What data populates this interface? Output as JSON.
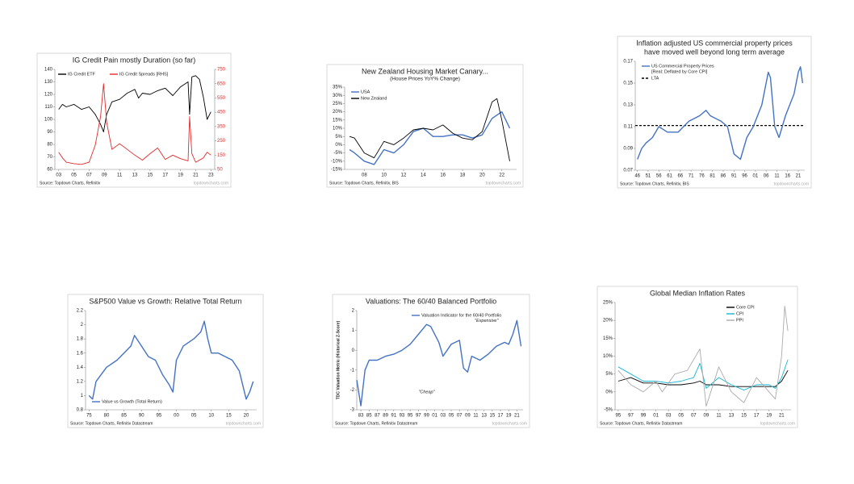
{
  "chart_data": [
    {
      "type": "line",
      "title": "IG Credit Pain mostly Duration (so far)",
      "xlim": [
        2002.5,
        2023.5
      ],
      "xticks": [
        {
          "value": 2003,
          "label": "03"
        },
        {
          "value": 2005,
          "label": "05"
        },
        {
          "value": 2007,
          "label": "07"
        },
        {
          "value": 2009,
          "label": "09"
        },
        {
          "value": 2011,
          "label": "11"
        },
        {
          "value": 2013,
          "label": "13"
        },
        {
          "value": 2015,
          "label": "15"
        },
        {
          "value": 2017,
          "label": "17"
        },
        {
          "value": 2019,
          "label": "19"
        },
        {
          "value": 2021,
          "label": "21"
        },
        {
          "value": 2023,
          "label": "23"
        }
      ],
      "ylim": [
        60,
        140
      ],
      "yticks": [
        60,
        70,
        80,
        90,
        100,
        110,
        120,
        130,
        140
      ],
      "y2lim": [
        50,
        750
      ],
      "y2ticks": [
        50,
        150,
        250,
        350,
        450,
        550,
        650,
        750
      ],
      "legend": "upper left",
      "series": [
        {
          "name": "IG Credit ETF",
          "color": "#000000",
          "x": [
            2003,
            2003.5,
            2004,
            2005,
            2006,
            2007,
            2007.8,
            2008.5,
            2008.9,
            2009.3,
            2010,
            2011,
            2012,
            2013,
            2013.5,
            2014,
            2015,
            2016,
            2017,
            2018,
            2019,
            2020,
            2020.2,
            2020.5,
            2021,
            2021.5,
            2022,
            2022.5,
            2023
          ],
          "values": [
            108,
            112,
            110,
            112,
            108,
            110,
            104,
            96,
            90,
            104,
            114,
            116,
            121,
            124,
            117,
            121,
            120,
            123,
            125,
            119,
            126,
            130,
            104,
            134,
            135,
            132,
            118,
            100,
            106
          ]
        },
        {
          "name": "IG Credit Spreads [RHS]",
          "color": "#e32b2b",
          "axis": "y2",
          "x": [
            2003,
            2003.5,
            2004,
            2005,
            2006,
            2007,
            2007.8,
            2008.5,
            2008.9,
            2009.3,
            2010,
            2011,
            2012,
            2013,
            2014,
            2015,
            2016,
            2017,
            2018,
            2019,
            2020,
            2020.2,
            2020.5,
            2021,
            2022,
            2022.5,
            2023
          ],
          "values": [
            170,
            130,
            100,
            90,
            85,
            100,
            220,
            420,
            650,
            380,
            190,
            230,
            190,
            150,
            115,
            160,
            200,
            120,
            150,
            125,
            110,
            420,
            160,
            100,
            130,
            170,
            150
          ]
        }
      ],
      "source": "Source: Topdown Charts, Refinitiv",
      "watermark": "topdowncharts.com"
    },
    {
      "type": "line",
      "title": "New Zealand Housing Market Canary...",
      "subtitle": "(House Prices YoY% Change)",
      "xlim": [
        2006,
        2023.5
      ],
      "xticks": [
        {
          "value": 2008,
          "label": "08"
        },
        {
          "value": 2010,
          "label": "10"
        },
        {
          "value": 2012,
          "label": "12"
        },
        {
          "value": 2014,
          "label": "14"
        },
        {
          "value": 2016,
          "label": "16"
        },
        {
          "value": 2018,
          "label": "18"
        },
        {
          "value": 2020,
          "label": "20"
        },
        {
          "value": 2022,
          "label": "22"
        }
      ],
      "ylim": [
        -15,
        35
      ],
      "yticks": [
        {
          "value": -15,
          "label": "-15%"
        },
        {
          "value": -10,
          "label": "-10%"
        },
        {
          "value": -5,
          "label": "-5%"
        },
        {
          "value": 0,
          "label": "0%"
        },
        {
          "value": 5,
          "label": "5%"
        },
        {
          "value": 10,
          "label": "10%"
        },
        {
          "value": 15,
          "label": "15%"
        },
        {
          "value": 20,
          "label": "20%"
        },
        {
          "value": 25,
          "label": "25%"
        },
        {
          "value": 30,
          "label": "30%"
        },
        {
          "value": 35,
          "label": "35%"
        }
      ],
      "legend": "upper left",
      "series": [
        {
          "name": "USA",
          "color": "#4472c4",
          "x": [
            2006.5,
            2007,
            2008,
            2009,
            2010,
            2011,
            2012,
            2013,
            2014,
            2015,
            2016,
            2017,
            2018,
            2019,
            2020,
            2021,
            2022,
            2022.8
          ],
          "values": [
            -3,
            -5,
            -10,
            -12,
            -3,
            -5,
            0,
            8,
            10,
            5,
            5,
            6,
            6,
            4,
            6,
            16,
            20,
            10
          ]
        },
        {
          "name": "New Zealand",
          "color": "#000000",
          "x": [
            2006.5,
            2007,
            2008,
            2009,
            2010,
            2011,
            2012,
            2013,
            2014,
            2015,
            2016,
            2017,
            2018,
            2019,
            2020,
            2021,
            2021.5,
            2022,
            2022.8
          ],
          "values": [
            5,
            4,
            -5,
            -8,
            2,
            0,
            4,
            9,
            10,
            9,
            12,
            7,
            4,
            3,
            8,
            26,
            28,
            15,
            -10
          ]
        }
      ],
      "source": "Source: Topdown Charts, Refinitiv, BIS",
      "watermark": "topdowncharts.com"
    },
    {
      "type": "line",
      "title": [
        "Inflation adjusted US commercial property prices",
        "have moved well beyond long term average"
      ],
      "xlim": [
        1945,
        2024
      ],
      "xticks": [
        {
          "value": 1946,
          "label": "46"
        },
        {
          "value": 1951,
          "label": "51"
        },
        {
          "value": 1956,
          "label": "56"
        },
        {
          "value": 1961,
          "label": "61"
        },
        {
          "value": 1966,
          "label": "66"
        },
        {
          "value": 1971,
          "label": "71"
        },
        {
          "value": 1976,
          "label": "76"
        },
        {
          "value": 1981,
          "label": "81"
        },
        {
          "value": 1986,
          "label": "86"
        },
        {
          "value": 1991,
          "label": "91"
        },
        {
          "value": 1996,
          "label": "96"
        },
        {
          "value": 2001,
          "label": "01"
        },
        {
          "value": 2006,
          "label": "06"
        },
        {
          "value": 2011,
          "label": "11"
        },
        {
          "value": 2016,
          "label": "16"
        },
        {
          "value": 2021,
          "label": "21"
        }
      ],
      "ylim": [
        0.07,
        0.17
      ],
      "yticks": [
        0.07,
        0.09,
        0.11,
        0.13,
        0.15,
        0.17
      ],
      "legend": "upper left",
      "series": [
        {
          "name": "US Commercial Property Prices",
          "note": "[Real: Deflated by Core CPI]",
          "color": "#4472c4",
          "x": [
            1946,
            1948,
            1950,
            1953,
            1956,
            1960,
            1965,
            1970,
            1975,
            1978,
            1980,
            1985,
            1988,
            1991,
            1994,
            1997,
            2000,
            2004,
            2007,
            2008,
            2010,
            2012,
            2015,
            2019,
            2021,
            2022,
            2023
          ],
          "values": [
            0.08,
            0.09,
            0.095,
            0.1,
            0.11,
            0.105,
            0.105,
            0.115,
            0.12,
            0.125,
            0.12,
            0.115,
            0.11,
            0.085,
            0.08,
            0.1,
            0.11,
            0.13,
            0.16,
            0.155,
            0.11,
            0.1,
            0.12,
            0.14,
            0.16,
            0.165,
            0.15
          ]
        }
      ],
      "reference_line": {
        "name": "LTA",
        "value": 0.111,
        "color": "#000000"
      },
      "source": "Source: Topdown Charts, Refinitiv, BIS",
      "watermark": "topdowncharts.com"
    },
    {
      "type": "line",
      "title": "S&P500 Value vs Growth: Relative Total Return",
      "xlim": [
        1974,
        2023
      ],
      "xticks": [
        {
          "value": 1975,
          "label": "75"
        },
        {
          "value": 1980,
          "label": "80"
        },
        {
          "value": 1985,
          "label": "85"
        },
        {
          "value": 1990,
          "label": "90"
        },
        {
          "value": 1995,
          "label": "95"
        },
        {
          "value": 2000,
          "label": "00"
        },
        {
          "value": 2005,
          "label": "05"
        },
        {
          "value": 2010,
          "label": "10"
        },
        {
          "value": 2015,
          "label": "15"
        },
        {
          "value": 2020,
          "label": "20"
        }
      ],
      "ylim": [
        0.8,
        2.2
      ],
      "yticks": [
        0.8,
        1,
        1.2,
        1.4,
        1.6,
        1.8,
        2,
        2.2
      ],
      "legend": "lower left",
      "series": [
        {
          "name": "Value vs Growth (Total Return)",
          "color": "#4472c4",
          "x": [
            1975,
            1976,
            1977,
            1980,
            1983,
            1985,
            1987,
            1988,
            1990,
            1992,
            1994,
            1996,
            1998,
            1999,
            2000,
            2002,
            2005,
            2007,
            2008,
            2009,
            2010,
            2012,
            2014,
            2016,
            2018,
            2020,
            2021,
            2022
          ],
          "values": [
            1.0,
            0.95,
            1.2,
            1.4,
            1.5,
            1.6,
            1.7,
            1.85,
            1.7,
            1.55,
            1.5,
            1.3,
            1.15,
            1.05,
            1.5,
            1.7,
            1.8,
            1.9,
            2.05,
            1.8,
            1.6,
            1.6,
            1.55,
            1.5,
            1.35,
            0.95,
            1.05,
            1.2
          ]
        }
      ],
      "source": "Source: Topdown Charts, Refinitiv Datastream",
      "watermark": "topdowncharts.com"
    },
    {
      "type": "line",
      "title": "Valuations: The 60/40 Balanced Portfolio",
      "y_label": "TDC Valuation Metric (Historical Z-Score)",
      "xlim": [
        1982,
        2022.5
      ],
      "xticks": [
        {
          "value": 1983,
          "label": "83"
        },
        {
          "value": 1985,
          "label": "85"
        },
        {
          "value": 1987,
          "label": "87"
        },
        {
          "value": 1989,
          "label": "89"
        },
        {
          "value": 1991,
          "label": "91"
        },
        {
          "value": 1993,
          "label": "93"
        },
        {
          "value": 1995,
          "label": "95"
        },
        {
          "value": 1997,
          "label": "97"
        },
        {
          "value": 1999,
          "label": "99"
        },
        {
          "value": 2001,
          "label": "01"
        },
        {
          "value": 2003,
          "label": "03"
        },
        {
          "value": 2005,
          "label": "05"
        },
        {
          "value": 2007,
          "label": "07"
        },
        {
          "value": 2009,
          "label": "09"
        },
        {
          "value": 2011,
          "label": "11"
        },
        {
          "value": 2013,
          "label": "13"
        },
        {
          "value": 2015,
          "label": "15"
        },
        {
          "value": 2017,
          "label": "17"
        },
        {
          "value": 2019,
          "label": "19"
        },
        {
          "value": 2021,
          "label": "21"
        }
      ],
      "ylim": [
        -3,
        2
      ],
      "yticks": [
        -3,
        -2,
        -1,
        0,
        1,
        2
      ],
      "legend": "upper center",
      "annotations": [
        "\"Expensive\"",
        "\"Cheap\""
      ],
      "series": [
        {
          "name": "Valuation Indicator for the 60/40 Portfolio",
          "color": "#4472c4",
          "x": [
            1982,
            1983,
            1984,
            1985,
            1987,
            1989,
            1991,
            1993,
            1995,
            1997,
            1999,
            2000,
            2002,
            2003,
            2005,
            2007,
            2008,
            2009,
            2010,
            2012,
            2014,
            2016,
            2018,
            2019,
            2020,
            2021,
            2022
          ],
          "values": [
            -1.5,
            -2.8,
            -1.0,
            -0.5,
            -0.5,
            -0.3,
            -0.2,
            0,
            0.3,
            0.8,
            1.3,
            1.2,
            0.4,
            -0.3,
            0.3,
            0.5,
            -0.9,
            -1.1,
            -0.3,
            -0.5,
            -0.2,
            0.2,
            0.4,
            0.3,
            0.8,
            1.5,
            0.2
          ]
        }
      ],
      "source": "Source: Topdown Charts, Refinitiv Datastream",
      "watermark": "topdowncharts.com"
    },
    {
      "type": "line",
      "title": "Global Median Inflation Rates",
      "xlim": [
        1994.5,
        2022.5
      ],
      "xticks": [
        {
          "value": 1995,
          "label": "95"
        },
        {
          "value": 1997,
          "label": "97"
        },
        {
          "value": 1999,
          "label": "99"
        },
        {
          "value": 2001,
          "label": "01"
        },
        {
          "value": 2003,
          "label": "03"
        },
        {
          "value": 2005,
          "label": "05"
        },
        {
          "value": 2007,
          "label": "07"
        },
        {
          "value": 2009,
          "label": "09"
        },
        {
          "value": 2011,
          "label": "11"
        },
        {
          "value": 2013,
          "label": "13"
        },
        {
          "value": 2015,
          "label": "15"
        },
        {
          "value": 2017,
          "label": "17"
        },
        {
          "value": 2019,
          "label": "19"
        },
        {
          "value": 2021,
          "label": "21"
        }
      ],
      "ylim": [
        -5,
        25
      ],
      "yticks": [
        {
          "value": -5,
          "label": "-5%"
        },
        {
          "value": 0,
          "label": "0%"
        },
        {
          "value": 5,
          "label": "5%"
        },
        {
          "value": 10,
          "label": "10%"
        },
        {
          "value": 15,
          "label": "15%"
        },
        {
          "value": 20,
          "label": "20%"
        },
        {
          "value": 25,
          "label": "25%"
        }
      ],
      "legend": "upper right",
      "series": [
        {
          "name": "Core CPI",
          "color": "#000000",
          "x": [
            1995,
            1997,
            1999,
            2001,
            2003,
            2005,
            2007,
            2008,
            2009,
            2011,
            2013,
            2015,
            2017,
            2019,
            2020,
            2021,
            2022
          ],
          "values": [
            3,
            4,
            2.5,
            2.5,
            2,
            2,
            2.5,
            3,
            2,
            2,
            1.5,
            1.5,
            1.5,
            1.5,
            1.5,
            3,
            6
          ]
        },
        {
          "name": "CPI",
          "color": "#17b6d4",
          "x": [
            1995,
            1997,
            1999,
            2001,
            2003,
            2005,
            2007,
            2008,
            2009,
            2011,
            2013,
            2015,
            2017,
            2019,
            2020,
            2021,
            2022
          ],
          "values": [
            7,
            5,
            3,
            3,
            2.5,
            3,
            4,
            8,
            1,
            4,
            2,
            0.5,
            2,
            2,
            1,
            4,
            9
          ]
        },
        {
          "name": "PPI",
          "color": "#aaaaaa",
          "x": [
            1995,
            1997,
            1999,
            2001,
            2002,
            2004,
            2006,
            2008,
            2009,
            2011,
            2013,
            2015,
            2017,
            2019,
            2020,
            2021,
            2021.5,
            2022
          ],
          "values": [
            6,
            2,
            0,
            3,
            0,
            5,
            6,
            12,
            -4,
            7,
            0,
            -3,
            4,
            0,
            -2,
            10,
            24,
            17
          ]
        }
      ],
      "source": "Source: Topdown Charts, Refinitiv Datastream",
      "watermark": "topdowncharts.com"
    }
  ]
}
